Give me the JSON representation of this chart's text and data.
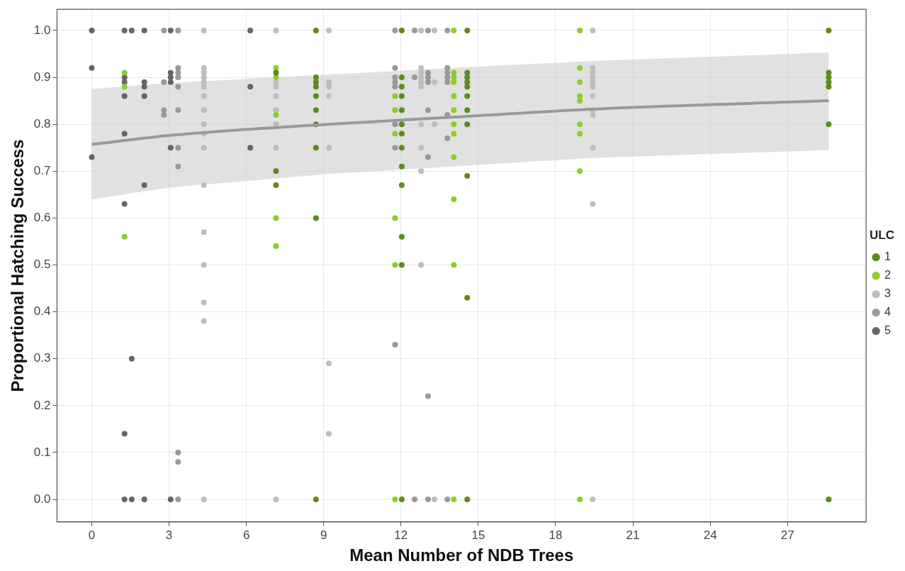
{
  "chart_data": {
    "type": "scatter",
    "xlabel": "Mean Number of NDB Trees",
    "ylabel": "Proportional Hatching Success",
    "legend_title": "ULC",
    "legend": "right",
    "grid": true,
    "marker": "circle",
    "xlim": [
      -1.35,
      30.05
    ],
    "ylim": [
      -0.048,
      1.045
    ],
    "xticks": [
      0,
      3,
      6,
      9,
      12,
      15,
      18,
      21,
      24,
      27
    ],
    "yticks": [
      {
        "value": 0,
        "label": "0.0"
      },
      {
        "value": 0.1,
        "label": "0.1"
      },
      {
        "value": 0.2,
        "label": "0.2"
      },
      {
        "value": 0.3,
        "label": "0.3"
      },
      {
        "value": 0.4,
        "label": "0.4"
      },
      {
        "value": 0.5,
        "label": "0.5"
      },
      {
        "value": 0.6,
        "label": "0.6"
      },
      {
        "value": 0.7,
        "label": "0.7"
      },
      {
        "value": 0.8,
        "label": "0.8"
      },
      {
        "value": 0.9,
        "label": "0.9"
      },
      {
        "value": 1,
        "label": "1.0"
      }
    ],
    "series": [
      {
        "name": "1",
        "color": "#5f8a1e",
        "x": [
          7.15,
          7.15,
          7.15,
          8.7,
          8.7,
          8.7,
          8.7,
          8.7,
          8.7,
          8.7,
          8.7,
          8.7,
          8.7,
          12.03,
          12.03,
          12.03,
          12.03,
          12.03,
          12.03,
          12.03,
          12.03,
          12.03,
          12.03,
          12.03,
          12.03,
          12.03,
          14.57,
          14.57,
          14.57,
          14.57,
          14.57,
          14.57,
          14.57,
          14.57,
          14.57,
          14.57,
          14.57,
          28.6,
          28.6,
          28.6,
          28.6,
          28.6,
          28.6,
          28.6
        ],
        "values": [
          0.91,
          0.7,
          0.67,
          1,
          0.9,
          0.89,
          0.88,
          0.86,
          0.83,
          0.8,
          0.75,
          0.6,
          0,
          1,
          0.9,
          0.88,
          0.86,
          0.83,
          0.8,
          0.78,
          0.75,
          0.71,
          0.67,
          0.56,
          0.5,
          0,
          1,
          0.91,
          0.9,
          0.89,
          0.88,
          0.86,
          0.83,
          0.8,
          0.69,
          0.43,
          0,
          1,
          0.91,
          0.9,
          0.89,
          0.88,
          0.8,
          0
        ]
      },
      {
        "name": "2",
        "color": "#8fcc2a",
        "x": [
          1.27,
          1.27,
          1.27,
          7.15,
          7.15,
          7.15,
          7.15,
          7.15,
          11.77,
          11.77,
          11.77,
          11.77,
          11.77,
          11.77,
          14.05,
          14.05,
          14.05,
          14.05,
          14.05,
          14.05,
          14.05,
          14.05,
          14.05,
          14.05,
          14.05,
          14.05,
          18.94,
          18.94,
          18.94,
          18.94,
          18.94,
          18.94,
          18.94,
          18.94,
          18.94
        ],
        "values": [
          0.91,
          0.88,
          0.56,
          0.92,
          0.9,
          0.82,
          0.6,
          0.54,
          0.86,
          0.83,
          0.78,
          0.6,
          0.5,
          0,
          1,
          0.91,
          0.9,
          0.89,
          0.86,
          0.83,
          0.8,
          0.78,
          0.73,
          0.64,
          0.5,
          0,
          1,
          0.92,
          0.89,
          0.86,
          0.85,
          0.8,
          0.78,
          0.7,
          0
        ]
      },
      {
        "name": "3",
        "color": "#bdbdbd",
        "x": [
          4.35,
          4.35,
          4.35,
          4.35,
          4.35,
          4.35,
          4.35,
          4.35,
          4.35,
          4.35,
          4.35,
          4.35,
          4.35,
          4.35,
          4.35,
          4.35,
          4.35,
          7.15,
          7.15,
          7.15,
          7.15,
          7.15,
          7.15,
          7.15,
          7.15,
          9.2,
          9.2,
          9.2,
          9.2,
          9.2,
          9.2,
          9.2,
          12.78,
          12.78,
          12.78,
          12.78,
          12.78,
          12.78,
          12.78,
          12.78,
          12.78,
          12.78,
          13.3,
          13.3,
          13.3,
          13.3,
          19.44,
          19.44,
          19.44,
          19.44,
          19.44,
          19.44,
          19.44,
          19.44,
          19.44,
          19.44,
          19.44,
          19.44
        ],
        "values": [
          1,
          0.92,
          0.91,
          0.9,
          0.89,
          0.88,
          0.86,
          0.83,
          0.8,
          0.78,
          0.75,
          0.67,
          0.57,
          0.5,
          0.42,
          0.38,
          0,
          1,
          0.89,
          0.88,
          0.86,
          0.83,
          0.8,
          0.75,
          0,
          1,
          0.89,
          0.88,
          0.86,
          0.75,
          0.29,
          0.14,
          1,
          0.92,
          0.91,
          0.9,
          0.89,
          0.88,
          0.8,
          0.75,
          0.7,
          0.5,
          1,
          0.89,
          0.8,
          0,
          1,
          0.92,
          0.91,
          0.9,
          0.89,
          0.88,
          0.86,
          0.83,
          0.82,
          0.75,
          0.63,
          0
        ]
      },
      {
        "name": "4",
        "color": "#999999",
        "x": [
          2.8,
          2.8,
          2.8,
          2.8,
          3.35,
          3.35,
          3.35,
          3.35,
          3.35,
          3.35,
          3.35,
          3.35,
          3.35,
          3.35,
          3.35,
          11.77,
          11.77,
          11.77,
          11.77,
          11.77,
          11.77,
          11.77,
          11.77,
          12.53,
          12.53,
          12.53,
          13.05,
          13.05,
          13.05,
          13.05,
          13.05,
          13.05,
          13.05,
          13.05,
          13.8,
          13.8,
          13.8,
          13.8,
          13.8,
          13.8,
          13.8,
          13.8
        ],
        "values": [
          1,
          0.89,
          0.83,
          0.82,
          1,
          0.92,
          0.91,
          0.9,
          0.88,
          0.83,
          0.75,
          0.71,
          0.1,
          0.08,
          0,
          1,
          0.92,
          0.9,
          0.89,
          0.88,
          0.8,
          0.75,
          0.33,
          1,
          0.9,
          0,
          1,
          0.91,
          0.9,
          0.89,
          0.83,
          0.73,
          0.22,
          0,
          1,
          0.92,
          0.91,
          0.9,
          0.89,
          0.82,
          0.77,
          0
        ]
      },
      {
        "name": "5",
        "color": "#666666",
        "x": [
          0,
          0,
          0,
          1.27,
          1.27,
          1.27,
          1.27,
          1.27,
          1.27,
          1.27,
          1.27,
          1.55,
          1.55,
          1.55,
          2.04,
          2.04,
          2.04,
          2.04,
          2.04,
          2.04,
          3.06,
          3.06,
          3.06,
          3.06,
          3.06,
          3.06,
          6.15,
          6.15,
          6.15
        ],
        "values": [
          1,
          0.92,
          0.73,
          1,
          0.9,
          0.89,
          0.86,
          0.78,
          0.63,
          0.14,
          0,
          1,
          0.3,
          0,
          1,
          0.89,
          0.88,
          0.86,
          0.67,
          0,
          1,
          0.91,
          0.9,
          0.89,
          0.75,
          0,
          1,
          0.88,
          0.75
        ]
      },
      {
        "type": "line",
        "marker": "none",
        "color": "#999999",
        "x": [
          0,
          3,
          9.2,
          14,
          19.4,
          28.6
        ],
        "values": [
          0.757,
          0.776,
          0.8,
          0.815,
          0.832,
          0.85
        ],
        "lower": [
          0.64,
          0.665,
          0.694,
          0.71,
          0.728,
          0.745
        ],
        "upper": [
          0.875,
          0.888,
          0.906,
          0.92,
          0.935,
          0.953
        ]
      }
    ]
  }
}
